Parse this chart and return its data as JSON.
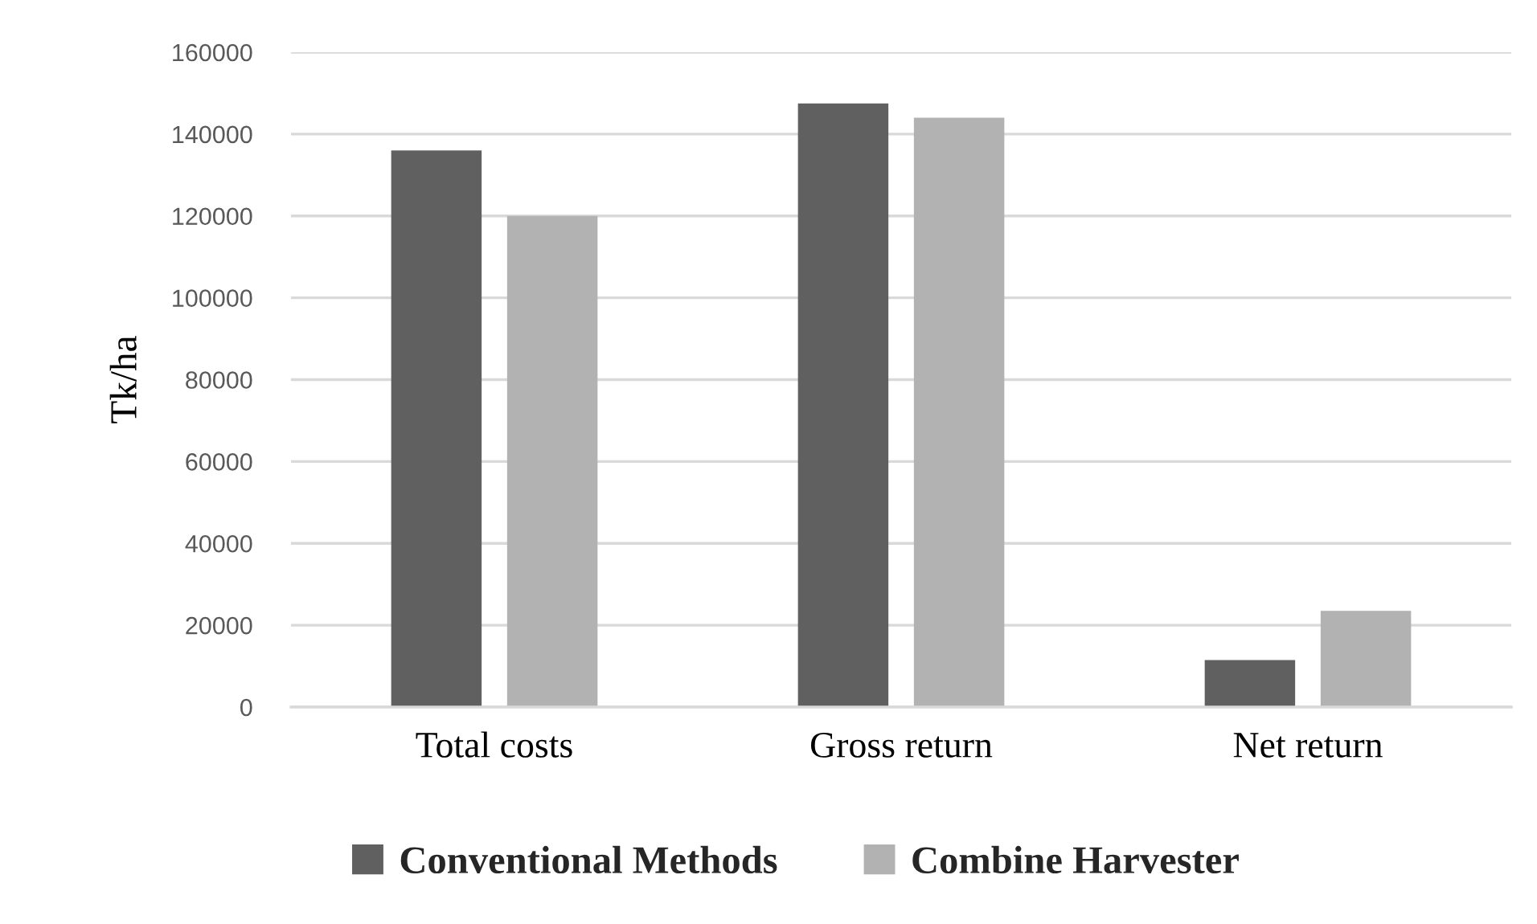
{
  "chart_data": {
    "type": "bar",
    "ylabel": "Tk/ha",
    "categories": [
      "Total costs",
      "Gross return",
      "Net return"
    ],
    "series": [
      {
        "name": "Conventional Methods",
        "color": "#606060",
        "values": [
          136000,
          147500,
          11500
        ]
      },
      {
        "name": "Combine Harvester",
        "color": "#b2b2b2",
        "values": [
          120000,
          144000,
          23500
        ]
      }
    ],
    "ylim": [
      0,
      160000
    ],
    "yticks": [
      0,
      20000,
      40000,
      60000,
      80000,
      100000,
      120000,
      140000,
      160000
    ],
    "grid": "y",
    "legend": "bottom"
  }
}
